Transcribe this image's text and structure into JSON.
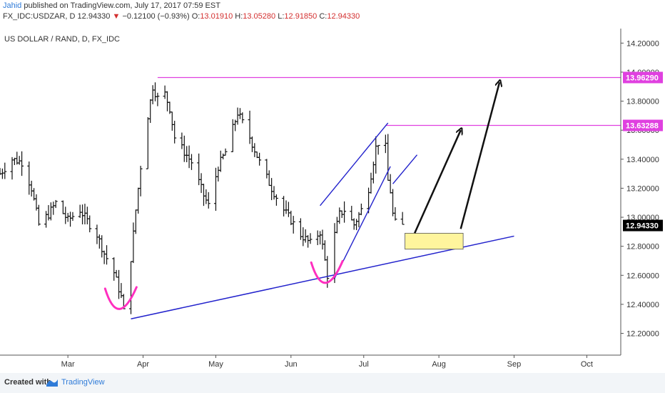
{
  "header": {
    "author": "Jahid",
    "published": "published on TradingView.com, July 17, 2017 07:59 EST",
    "symbol": "FX_IDC:USDZAR, D",
    "last": "12.94330",
    "change": "▼",
    "change_value": "−0.12100 (−0.93%)",
    "open_label": "O:",
    "open": "13.01910",
    "high_label": "H:",
    "high": "13.05280",
    "low_label": "L:",
    "low": "12.91850",
    "close_label": "C:",
    "close": "12.94330"
  },
  "chart_data": {
    "type": "ohlc",
    "title": "US DOLLAR / RAND, D, FX_IDC",
    "x_tick_labels": [
      "Mar",
      "Apr",
      "May",
      "Jun",
      "Jul",
      "Aug",
      "Sep",
      "Oct"
    ],
    "y_tick_labels": [
      "12.20000",
      "12.40000",
      "12.60000",
      "12.80000",
      "13.00000",
      "13.20000",
      "13.40000",
      "13.60000",
      "13.80000",
      "14.00000",
      "14.20000"
    ],
    "ylim": [
      12.05,
      14.3
    ],
    "date_range": [
      "2017-02-01",
      "2017-10-15"
    ],
    "grid": false,
    "price_marker_labels": [
      "13.96290",
      "13.63288",
      "12.94330"
    ],
    "price_marker_colors": [
      "#e040e0",
      "#e040e0",
      "#000000"
    ],
    "close_path": [
      [
        "2017-02-01",
        13.3
      ],
      [
        "2017-02-06",
        13.4
      ],
      [
        "2017-02-10",
        13.38
      ],
      [
        "2017-02-14",
        13.2
      ],
      [
        "2017-02-17",
        12.95
      ],
      [
        "2017-02-21",
        13.02
      ],
      [
        "2017-02-24",
        13.1
      ],
      [
        "2017-03-01",
        12.98
      ],
      [
        "2017-03-06",
        13.05
      ],
      [
        "2017-03-10",
        12.95
      ],
      [
        "2017-03-13",
        12.88
      ],
      [
        "2017-03-16",
        12.75
      ],
      [
        "2017-03-20",
        12.62
      ],
      [
        "2017-03-23",
        12.45
      ],
      [
        "2017-03-24",
        12.35
      ],
      [
        "2017-03-27",
        12.72
      ],
      [
        "2017-03-29",
        13.05
      ],
      [
        "2017-03-31",
        13.35
      ],
      [
        "2017-04-03",
        13.7
      ],
      [
        "2017-04-05",
        13.9
      ],
      [
        "2017-04-07",
        13.82
      ],
      [
        "2017-04-10",
        13.85
      ],
      [
        "2017-04-12",
        13.75
      ],
      [
        "2017-04-14",
        13.55
      ],
      [
        "2017-04-18",
        13.45
      ],
      [
        "2017-04-21",
        13.38
      ],
      [
        "2017-04-26",
        13.15
      ],
      [
        "2017-04-28",
        13.08
      ],
      [
        "2017-05-02",
        13.35
      ],
      [
        "2017-05-05",
        13.45
      ],
      [
        "2017-05-10",
        13.72
      ],
      [
        "2017-05-15",
        13.55
      ],
      [
        "2017-05-19",
        13.38
      ],
      [
        "2017-05-24",
        13.2
      ],
      [
        "2017-05-29",
        13.05
      ],
      [
        "2017-06-01",
        12.98
      ],
      [
        "2017-06-05",
        12.88
      ],
      [
        "2017-06-09",
        12.82
      ],
      [
        "2017-06-13",
        12.9
      ],
      [
        "2017-06-15",
        12.7
      ],
      [
        "2017-06-16",
        12.6
      ],
      [
        "2017-06-19",
        12.88
      ],
      [
        "2017-06-21",
        13.02
      ],
      [
        "2017-06-23",
        13.05
      ],
      [
        "2017-06-27",
        12.95
      ],
      [
        "2017-06-30",
        13.05
      ],
      [
        "2017-07-03",
        13.2
      ],
      [
        "2017-07-06",
        13.48
      ],
      [
        "2017-07-08",
        13.55
      ],
      [
        "2017-07-10",
        13.48
      ],
      [
        "2017-07-11",
        13.25
      ],
      [
        "2017-07-12",
        13.18
      ],
      [
        "2017-07-13",
        13.02
      ],
      [
        "2017-07-14",
        12.96
      ],
      [
        "2017-07-17",
        12.94
      ]
    ],
    "annotations": {
      "support_line": [
        [
          "2017-03-27",
          12.3
        ],
        [
          "2017-09-01",
          12.87
        ]
      ],
      "channel_lower": [
        [
          "2017-06-19",
          12.58
        ],
        [
          "2017-07-12",
          13.35
        ]
      ],
      "channel_upper": [
        [
          "2017-06-13",
          13.08
        ],
        [
          "2017-07-11",
          13.65
        ]
      ],
      "channel_right": [
        [
          "2017-07-13",
          13.23
        ],
        [
          "2017-07-23",
          13.43
        ]
      ],
      "resistance_1": {
        "y": 13.9629,
        "from": "2017-04-07"
      },
      "resistance_2": {
        "y": 13.63288,
        "from": "2017-07-10"
      },
      "target_box": {
        "x0": "2017-07-18",
        "x1": "2017-08-11",
        "y0": 12.78,
        "y1": 12.89
      },
      "arrow_1": [
        [
          "2017-07-22",
          12.89
        ],
        [
          "2017-08-10",
          13.6
        ]
      ],
      "arrow_2": [
        [
          "2017-08-10",
          12.92
        ],
        [
          "2017-08-26",
          13.93
        ]
      ],
      "swing_low_marks": [
        [
          "2017-03-24",
          12.4
        ],
        [
          "2017-06-17",
          12.58
        ]
      ]
    }
  },
  "footer": {
    "created_with": "Created with",
    "brand": "TradingView"
  }
}
